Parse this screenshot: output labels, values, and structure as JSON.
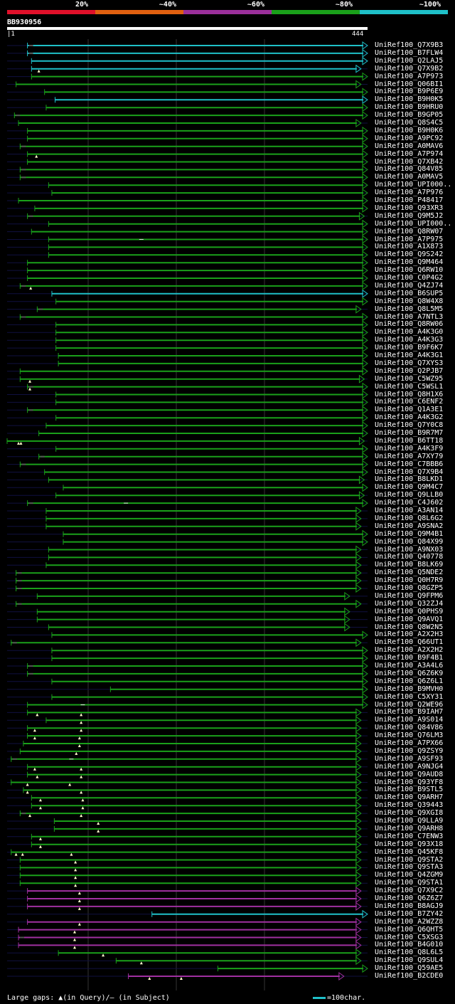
{
  "legend": {
    "segments": [
      {
        "color": "#e0102a"
      },
      {
        "color": "#e06010"
      },
      {
        "color": "#9a2f9a"
      },
      {
        "color": "#1aa01a"
      },
      {
        "color": "#1fc0c8"
      }
    ],
    "labels": [
      "20%",
      "~40%",
      "~60%",
      "~80%",
      "~100%"
    ]
  },
  "query": {
    "name": "BB930956",
    "start": "1",
    "end": "444",
    "length": 444
  },
  "hits": [
    {
      "name": "UniRef100_Q7X9B3",
      "start": 26,
      "end": 444,
      "color": "cyan",
      "hd": true
    },
    {
      "name": "UniRef100_B7FLW4",
      "start": 26,
      "end": 444,
      "color": "cyan",
      "hd": true
    },
    {
      "name": "UniRef100_Q2LAJ5",
      "start": 31,
      "end": 444,
      "color": "cyan"
    },
    {
      "name": "UniRef100_Q7X9B2",
      "start": 31,
      "end": 436,
      "color": "cyan",
      "tri": [
        40
      ]
    },
    {
      "name": "UniRef100_A7P973",
      "start": 31,
      "end": 444,
      "color": "green"
    },
    {
      "name": "UniRef100_Q06BI1",
      "start": 12,
      "end": 436,
      "color": "green"
    },
    {
      "name": "UniRef100_B9P6E9",
      "start": 47,
      "end": 444,
      "color": "green"
    },
    {
      "name": "UniRef100_B9H0K5",
      "start": 60,
      "end": 444,
      "color": "cyan"
    },
    {
      "name": "UniRef100_B9HRU0",
      "start": 49,
      "end": 444,
      "color": "green"
    },
    {
      "name": "UniRef100_B9GP05",
      "start": 10,
      "end": 444,
      "color": "green",
      "hd": true
    },
    {
      "name": "UniRef100_Q8S4C5",
      "start": 15,
      "end": 436,
      "color": "green"
    },
    {
      "name": "UniRef100_B9H0K6",
      "start": 26,
      "end": 444,
      "color": "green"
    },
    {
      "name": "UniRef100_A9PC92",
      "start": 26,
      "end": 444,
      "color": "green"
    },
    {
      "name": "UniRef100_A0MAV6",
      "start": 17,
      "end": 444,
      "color": "green",
      "hd": true
    },
    {
      "name": "UniRef100_A7P974",
      "start": 26,
      "end": 444,
      "color": "green",
      "tri": [
        37
      ]
    },
    {
      "name": "UniRef100_Q7XB42",
      "start": 26,
      "end": 444,
      "color": "green"
    },
    {
      "name": "UniRef100_Q84V85",
      "start": 17,
      "end": 444,
      "color": "green",
      "hd": true
    },
    {
      "name": "UniRef100_A0MAV5",
      "start": 17,
      "end": 444,
      "color": "green",
      "hd": true
    },
    {
      "name": "UniRef100_UPI000..",
      "start": 52,
      "end": 444,
      "color": "green"
    },
    {
      "name": "UniRef100_A7P976",
      "start": 56,
      "end": 444,
      "color": "green"
    },
    {
      "name": "UniRef100_P48417",
      "start": 15,
      "end": 444,
      "color": "green"
    },
    {
      "name": "UniRef100_Q93XR3",
      "start": 35,
      "end": 444,
      "color": "green"
    },
    {
      "name": "UniRef100_Q9M5J2",
      "start": 26,
      "end": 440,
      "color": "green",
      "hd": true
    },
    {
      "name": "UniRef100_UPI000..",
      "start": 52,
      "end": 444,
      "color": "green"
    },
    {
      "name": "UniRef100_Q8RW07",
      "start": 31,
      "end": 444,
      "color": "green"
    },
    {
      "name": "UniRef100_A7P975",
      "start": 52,
      "end": 444,
      "color": "green",
      "hd2": [
        166
      ]
    },
    {
      "name": "UniRef100_A1X873",
      "start": 52,
      "end": 444,
      "color": "green"
    },
    {
      "name": "UniRef100_Q9S242",
      "start": 52,
      "end": 444,
      "color": "green"
    },
    {
      "name": "UniRef100_Q9M464",
      "start": 26,
      "end": 444,
      "color": "green"
    },
    {
      "name": "UniRef100_Q6RW10",
      "start": 26,
      "end": 444,
      "color": "green"
    },
    {
      "name": "UniRef100_C0P4G2",
      "start": 26,
      "end": 444,
      "color": "green"
    },
    {
      "name": "UniRef100_Q4ZJ74",
      "start": 17,
      "end": 444,
      "color": "green",
      "tri": [
        30
      ],
      "hd": true
    },
    {
      "name": "UniRef100_B6SUP5",
      "start": 56,
      "end": 444,
      "color": "cyan"
    },
    {
      "name": "UniRef100_Q8W4X8",
      "start": 61,
      "end": 444,
      "color": "green"
    },
    {
      "name": "UniRef100_Q8L5M5",
      "start": 38,
      "end": 436,
      "color": "green",
      "hd": true
    },
    {
      "name": "UniRef100_A7NTL3",
      "start": 17,
      "end": 444,
      "color": "green",
      "hd": true
    },
    {
      "name": "UniRef100_Q8RW06",
      "start": 61,
      "end": 444,
      "color": "green"
    },
    {
      "name": "UniRef100_A4K3G0",
      "start": 61,
      "end": 444,
      "color": "green"
    },
    {
      "name": "UniRef100_A4K3G3",
      "start": 61,
      "end": 444,
      "color": "green"
    },
    {
      "name": "UniRef100_B9F6K7",
      "start": 61,
      "end": 444,
      "color": "green"
    },
    {
      "name": "UniRef100_A4K3G1",
      "start": 64,
      "end": 444,
      "color": "green"
    },
    {
      "name": "UniRef100_Q7XYS3",
      "start": 64,
      "end": 444,
      "color": "green"
    },
    {
      "name": "UniRef100_Q2PJB7",
      "start": 17,
      "end": 444,
      "color": "green"
    },
    {
      "name": "UniRef100_C5WZ95",
      "start": 17,
      "end": 440,
      "color": "green",
      "tri": [
        29
      ]
    },
    {
      "name": "UniRef100_C5WSL1",
      "start": 26,
      "end": 444,
      "color": "green",
      "tri": [
        29
      ],
      "hd": true
    },
    {
      "name": "UniRef100_Q8H1X6",
      "start": 61,
      "end": 444,
      "color": "green"
    },
    {
      "name": "UniRef100_C6ENF2",
      "start": 61,
      "end": 444,
      "color": "green"
    },
    {
      "name": "UniRef100_Q1A3E1",
      "start": 26,
      "end": 444,
      "color": "green",
      "hd": true
    },
    {
      "name": "UniRef100_A4K3G2",
      "start": 61,
      "end": 444,
      "color": "green"
    },
    {
      "name": "UniRef100_Q7Y0C8",
      "start": 49,
      "end": 444,
      "color": "green"
    },
    {
      "name": "UniRef100_B9R7M7",
      "start": 40,
      "end": 444,
      "color": "green"
    },
    {
      "name": "UniRef100_B6TT18",
      "start": 1,
      "end": 440,
      "color": "green",
      "tri": [
        15,
        18
      ]
    },
    {
      "name": "UniRef100_A4K3F9",
      "start": 61,
      "end": 444,
      "color": "green"
    },
    {
      "name": "UniRef100_A7XY79",
      "start": 40,
      "end": 444,
      "color": "green",
      "hd": true
    },
    {
      "name": "UniRef100_C7BBB6",
      "start": 17,
      "end": 444,
      "color": "green",
      "hd": true
    },
    {
      "name": "UniRef100_Q7X9B4",
      "start": 47,
      "end": 444,
      "color": "green"
    },
    {
      "name": "UniRef100_B8LKD1",
      "start": 52,
      "end": 440,
      "color": "green"
    },
    {
      "name": "UniRef100_Q9M4C7",
      "start": 70,
      "end": 444,
      "color": "green"
    },
    {
      "name": "UniRef100_Q9LLB0",
      "start": 61,
      "end": 440,
      "color": "green"
    },
    {
      "name": "UniRef100_C4J602",
      "start": 26,
      "end": 444,
      "color": "green",
      "hd": true,
      "hd2": [
        147
      ]
    },
    {
      "name": "UniRef100_A3AN14",
      "start": 49,
      "end": 436,
      "color": "green"
    },
    {
      "name": "UniRef100_Q8L6G2",
      "start": 49,
      "end": 436,
      "color": "green"
    },
    {
      "name": "UniRef100_A9SNA2",
      "start": 49,
      "end": 436,
      "color": "green"
    },
    {
      "name": "UniRef100_Q9M4B1",
      "start": 70,
      "end": 444,
      "color": "green"
    },
    {
      "name": "UniRef100_Q84X99",
      "start": 70,
      "end": 444,
      "color": "green"
    },
    {
      "name": "UniRef100_A9NX03",
      "start": 52,
      "end": 436,
      "color": "green"
    },
    {
      "name": "UniRef100_Q40778",
      "start": 52,
      "end": 436,
      "color": "green"
    },
    {
      "name": "UniRef100_B8LK69",
      "start": 49,
      "end": 436,
      "color": "green"
    },
    {
      "name": "UniRef100_Q5NDE2",
      "start": 12,
      "end": 436,
      "color": "green",
      "hd": true
    },
    {
      "name": "UniRef100_Q0H7R9",
      "start": 12,
      "end": 436,
      "color": "green",
      "hd": true
    },
    {
      "name": "UniRef100_Q8GZP5",
      "start": 12,
      "end": 436,
      "color": "green",
      "hd": true
    },
    {
      "name": "UniRef100_Q9FPM6",
      "start": 38,
      "end": 422,
      "color": "green"
    },
    {
      "name": "UniRef100_Q32ZJ4",
      "start": 12,
      "end": 436,
      "color": "green",
      "hd": true
    },
    {
      "name": "UniRef100_Q0PHS9",
      "start": 38,
      "end": 422,
      "color": "green"
    },
    {
      "name": "UniRef100_Q9AVQ1",
      "start": 38,
      "end": 422,
      "color": "green"
    },
    {
      "name": "UniRef100_Q8W2N5",
      "start": 52,
      "end": 422,
      "color": "green"
    },
    {
      "name": "UniRef100_A2X2H3",
      "start": 56,
      "end": 444,
      "color": "green"
    },
    {
      "name": "UniRef100_Q66UT1",
      "start": 6,
      "end": 436,
      "color": "green",
      "hd": true
    },
    {
      "name": "UniRef100_A2X2H2",
      "start": 56,
      "end": 444,
      "color": "green"
    },
    {
      "name": "UniRef100_B9F4B1",
      "start": 56,
      "end": 444,
      "color": "green"
    },
    {
      "name": "UniRef100_A3A4L6",
      "start": 26,
      "end": 444,
      "color": "green",
      "hd": true
    },
    {
      "name": "UniRef100_Q6Z6K9",
      "start": 26,
      "end": 444,
      "color": "green",
      "hd": true
    },
    {
      "name": "UniRef100_Q6Z6L1",
      "start": 56,
      "end": 444,
      "color": "green"
    },
    {
      "name": "UniRef100_B9MVH0",
      "start": 128,
      "end": 444,
      "color": "green"
    },
    {
      "name": "UniRef100_C5XY31",
      "start": 56,
      "end": 444,
      "color": "green"
    },
    {
      "name": "UniRef100_Q2WE96",
      "start": 26,
      "end": 444,
      "color": "green",
      "hd2": [
        94
      ]
    },
    {
      "name": "UniRef100_B9IAH7",
      "start": 26,
      "end": 436,
      "color": "green",
      "tri": [
        38,
        92
      ]
    },
    {
      "name": "UniRef100_A9S014",
      "start": 49,
      "end": 436,
      "color": "green",
      "tri": [
        92
      ]
    },
    {
      "name": "UniRef100_Q84V86",
      "start": 26,
      "end": 436,
      "color": "green",
      "tri": [
        35,
        92
      ]
    },
    {
      "name": "UniRef100_Q76LM3",
      "start": 26,
      "end": 436,
      "color": "green",
      "tri": [
        35,
        90
      ]
    },
    {
      "name": "UniRef100_A7PX66",
      "start": 21,
      "end": 436,
      "color": "green",
      "tri": [
        90
      ]
    },
    {
      "name": "UniRef100_Q9ZSY9",
      "start": 17,
      "end": 436,
      "color": "green",
      "tri": [
        86
      ]
    },
    {
      "name": "UniRef100_A9SF93",
      "start": 6,
      "end": 436,
      "color": "green",
      "hd": true,
      "hd2": [
        80
      ]
    },
    {
      "name": "UniRef100_A9NJG4",
      "start": 26,
      "end": 436,
      "color": "green",
      "tri": [
        35,
        92
      ]
    },
    {
      "name": "UniRef100_Q9AUD8",
      "start": 26,
      "end": 436,
      "color": "green",
      "tri": [
        38,
        92
      ]
    },
    {
      "name": "UniRef100_Q93YF8",
      "start": 6,
      "end": 436,
      "color": "green",
      "tri": [
        26,
        78
      ]
    },
    {
      "name": "UniRef100_B9STL5",
      "start": 21,
      "end": 436,
      "color": "green",
      "tri": [
        26,
        92
      ]
    },
    {
      "name": "UniRef100_Q9ARH7",
      "start": 31,
      "end": 436,
      "color": "green",
      "tri": [
        42,
        94
      ]
    },
    {
      "name": "UniRef100_Q39443",
      "start": 31,
      "end": 436,
      "color": "green",
      "tri": [
        42,
        94
      ]
    },
    {
      "name": "UniRef100_Q9XGI8",
      "start": 17,
      "end": 436,
      "color": "green",
      "tri": [
        29,
        92
      ],
      "hd": true
    },
    {
      "name": "UniRef100_Q9LLA9",
      "start": 59,
      "end": 436,
      "color": "green",
      "tri": [
        113
      ]
    },
    {
      "name": "UniRef100_Q9ARH8",
      "start": 59,
      "end": 436,
      "color": "green",
      "tri": [
        113
      ]
    },
    {
      "name": "UniRef100_C7ENW3",
      "start": 31,
      "end": 436,
      "color": "green",
      "tri": [
        42
      ]
    },
    {
      "name": "UniRef100_Q93X18",
      "start": 31,
      "end": 436,
      "color": "green",
      "tri": [
        42
      ]
    },
    {
      "name": "UniRef100_Q45KF8",
      "start": 6,
      "end": 436,
      "color": "green",
      "tri": [
        12,
        20,
        80
      ]
    },
    {
      "name": "UniRef100_Q9STA2",
      "start": 17,
      "end": 436,
      "color": "green",
      "tri": [
        85
      ]
    },
    {
      "name": "UniRef100_Q9STA3",
      "start": 17,
      "end": 436,
      "color": "green",
      "tri": [
        85
      ]
    },
    {
      "name": "UniRef100_Q4ZGM9",
      "start": 17,
      "end": 436,
      "color": "green",
      "tri": [
        85
      ]
    },
    {
      "name": "UniRef100_Q9STA1",
      "start": 17,
      "end": 436,
      "color": "green",
      "tri": [
        85
      ]
    },
    {
      "name": "UniRef100_Q7X9C2",
      "start": 26,
      "end": 436,
      "color": "purple",
      "tri": [
        90
      ]
    },
    {
      "name": "UniRef100_Q6Z6Z7",
      "start": 26,
      "end": 436,
      "color": "purple",
      "tri": [
        90
      ]
    },
    {
      "name": "UniRef100_B8AGJ9",
      "start": 26,
      "end": 436,
      "color": "purple",
      "tri": [
        90
      ]
    },
    {
      "name": "UniRef100_B7ZY42",
      "start": 179,
      "end": 444,
      "color": "cyan"
    },
    {
      "name": "UniRef100_A2WZZ8",
      "start": 26,
      "end": 436,
      "color": "purple",
      "tri": [
        90
      ]
    },
    {
      "name": "UniRef100_Q6QHT5",
      "start": 15,
      "end": 436,
      "color": "purple",
      "tri": [
        84
      ]
    },
    {
      "name": "UniRef100_C5XSG3",
      "start": 15,
      "end": 436,
      "color": "purple",
      "tri": [
        84
      ],
      "hd": true
    },
    {
      "name": "UniRef100_B4G010",
      "start": 15,
      "end": 436,
      "color": "purple",
      "tri": [
        84
      ]
    },
    {
      "name": "UniRef100_Q8L6L5",
      "start": 64,
      "end": 436,
      "color": "green",
      "tri": [
        119
      ]
    },
    {
      "name": "UniRef100_Q9SUL4",
      "start": 135,
      "end": 436,
      "color": "green",
      "tri": [
        166
      ]
    },
    {
      "name": "UniRef100_Q59AE5",
      "start": 260,
      "end": 444,
      "color": "green"
    },
    {
      "name": "UniRef100_B2CDE0",
      "start": 150,
      "end": 415,
      "color": "purple",
      "tri": [
        176,
        215
      ]
    }
  ],
  "footer": {
    "gaps_text": "Large gaps: ▲(in Query)/– (in Subject)",
    "scale_text": "=100char."
  }
}
